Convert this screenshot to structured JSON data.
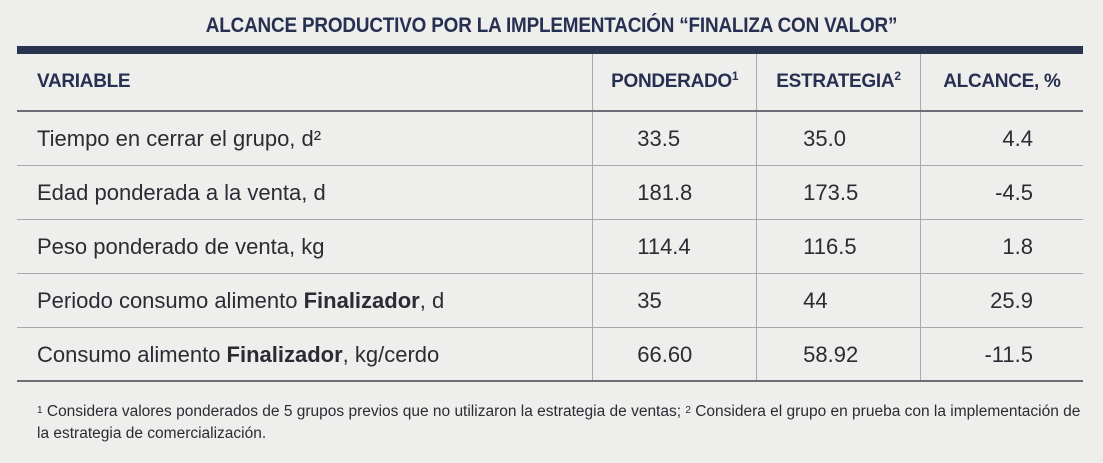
{
  "title": "ALCANCE PRODUCTIVO POR LA IMPLEMENTACIÓN “FINALIZA CON VALOR”",
  "headers": {
    "variable": "VARIABLE",
    "ponderado": "PONDERADO",
    "ponderado_sup": "1",
    "estrategia": "ESTRATEGIA",
    "estrategia_sup": "2",
    "alcance": "ALCANCE, %"
  },
  "rows": [
    {
      "label": "Tiempo en cerrar el grupo, d²",
      "label_bold": "",
      "label_after": "",
      "ponderado": "33.5",
      "estrategia": "35.0",
      "alcance": "4.4"
    },
    {
      "label": "Edad ponderada a la venta, d",
      "label_bold": "",
      "label_after": "",
      "ponderado": "181.8",
      "estrategia": "173.5",
      "alcance": "-4.5"
    },
    {
      "label": "Peso ponderado de venta, kg",
      "label_bold": "",
      "label_after": "",
      "ponderado": "114.4",
      "estrategia": "116.5",
      "alcance": "1.8"
    },
    {
      "label": "Periodo consumo alimento ",
      "label_bold": "Finalizador",
      "label_after": ", d",
      "ponderado": "35",
      "estrategia": "44",
      "alcance": "25.9"
    },
    {
      "label": "Consumo alimento ",
      "label_bold": "Finalizador",
      "label_after": ", kg/cerdo",
      "ponderado": "66.60",
      "estrategia": "58.92",
      "alcance": "-11.5"
    }
  ],
  "footnote": {
    "sup1": "1",
    "text1": " Considera valores ponderados de 5 grupos previos que no utilizaron la estrategia de ventas; ",
    "sup2": "2",
    "text2": " Considera el grupo en prueba con la implementación de la estrategia de comercialización."
  }
}
